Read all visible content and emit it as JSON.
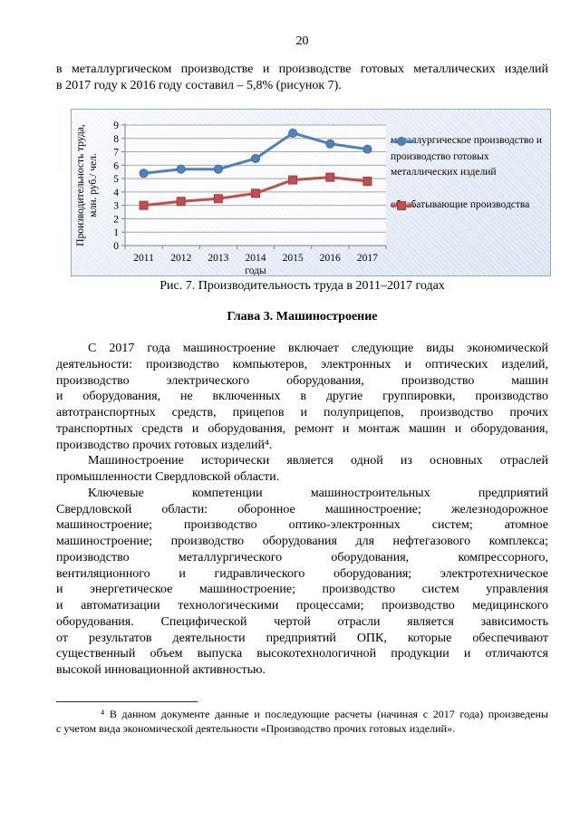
{
  "page": {
    "number": "20"
  },
  "intro": {
    "lines": [
      "в металлургическом производстве и производстве готовых металлических изделий",
      "в 2017 году к 2016 году составил – 5,8% (рисунок 7)."
    ]
  },
  "figure": {
    "caption": "Рис. 7. Производительность труда в 2011–2017 годах"
  },
  "chapter": {
    "title": "Глава 3. Машиностроение"
  },
  "paragraphs": [
    {
      "lines": [
        "С 2017 года машиностроение включает следующие виды экономической",
        "деятельности: производство компьютеров, электронных и оптических изделий,",
        "производство электрического оборудования, производство машин",
        "и оборудования, не включенных в другие группировки, производство",
        "автотранспортных средств, прицепов и полуприцепов, производство прочих",
        "транспортных средств и оборудования, ремонт и монтаж машин и оборудования,",
        "производство прочих готовых изделий⁴."
      ]
    },
    {
      "lines": [
        "Машиностроение исторически является одной из основных отраслей",
        "промышленности Свердловской области."
      ]
    },
    {
      "lines": [
        "Ключевые компетенции машиностроительных предприятий",
        "Свердловской области: оборонное машиностроение; железнодорожное",
        "машиностроение; производство оптико-электронных систем; атомное",
        "машиностроение; производство оборудования для нефтегазового комплекса;",
        "производство металлургического оборудования, компрессорного,",
        "вентиляционного и гидравлического оборудования; электротехническое",
        "и энергетическое машиностроение; производство систем управления",
        "и автоматизации технологическими процессами; производство медицинского",
        "оборудования. Специфической чертой отрасли является зависимость",
        "от результатов деятельности предприятий ОПК, которые обеспечивают",
        "существенный объем выпуска высокотехнологичной продукции и отличаются",
        "высокой инновационной активностью."
      ]
    }
  ],
  "footnote": {
    "lines": [
      "⁴ В данном документе данные и последующие расчеты (начиная с 2017 года) произведены",
      "с учетом вида экономической деятельности «Производство прочих готовых изделий»."
    ]
  },
  "chart_data": {
    "type": "line",
    "categories": [
      "2011",
      "2012",
      "2013",
      "2014",
      "2015",
      "2016",
      "2017"
    ],
    "series": [
      {
        "name": "металлургическое производство и производство готовых металлических изделий",
        "values": [
          5.4,
          5.7,
          5.7,
          6.5,
          8.4,
          7.6,
          7.2
        ],
        "color": "#4F81BD",
        "edge": "#3A6EA5",
        "marker": "circle"
      },
      {
        "name": "обрабатывающие производства",
        "values": [
          3.0,
          3.3,
          3.5,
          3.9,
          4.9,
          5.1,
          4.8
        ],
        "color": "#C0504D",
        "edge": "#A03C3A",
        "marker": "square"
      }
    ],
    "title": "",
    "xlabel": "годы",
    "ylabel": "Производительность труда, млн. руб./ чел.",
    "ylabel_lines": [
      "Производительность труда,",
      "млн. руб./ чел."
    ],
    "ylim": [
      0,
      9
    ],
    "ytick_step": 1,
    "grid": true,
    "legend_position": "right",
    "grid_color": "#a6a6a6",
    "axis_color": "#7f7f7f"
  }
}
